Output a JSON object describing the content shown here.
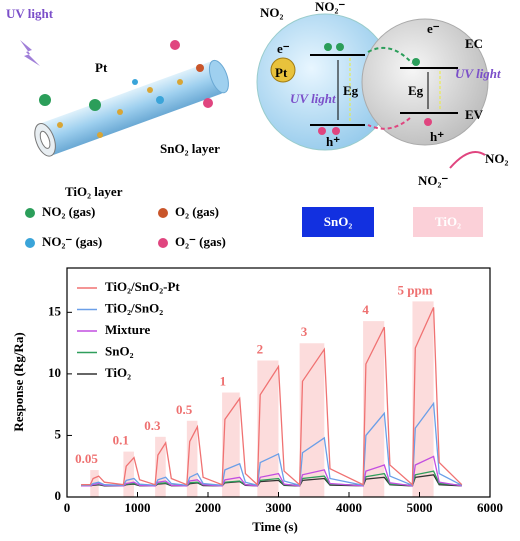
{
  "diagram": {
    "uv_light": "UV light",
    "pt": "Pt",
    "sno2_layer": "SnO₂ layer",
    "tio2_layer": "TiO₂ layer",
    "no2_in": "NO₂",
    "no2_ion_top": "NO₂⁻",
    "electron_left": "e⁻",
    "pt_particle": "Pt",
    "uv_left": "UV light",
    "eg_left": "Eg",
    "hole_left": "h⁺",
    "electron_right": "e⁻",
    "ec": "EC",
    "eg_right": "Eg",
    "uv_right": "UV light",
    "ev": "EV",
    "hole_right": "h⁺",
    "no2_ion_bottom": "NO₂⁻",
    "no2_out": "NO₂",
    "legend": [
      "NO₂ (gas)",
      "O₂ (gas)",
      "NO₂⁻ (gas)",
      "O₂⁻ (gas)"
    ],
    "sno2_box": "SnO₂",
    "tio2_box": "TiO₂"
  },
  "chart_data": {
    "type": "line",
    "xlabel": "Time (s)",
    "ylabel": "Response (Rg/Ra)",
    "x": [
      200,
      330,
      370,
      450,
      530,
      800,
      840,
      950,
      1030,
      1250,
      1290,
      1400,
      1480,
      1700,
      1740,
      1850,
      1930,
      2200,
      2240,
      2450,
      2530,
      2700,
      2740,
      3000,
      3080,
      3300,
      3340,
      3650,
      3730,
      4200,
      4240,
      4500,
      4580,
      4900,
      4940,
      5200,
      5280,
      5600
    ],
    "series": [
      {
        "name": "TiO₂/SnO₂-Pt",
        "color": "#f07272",
        "values": [
          1.0,
          1.0,
          1.5,
          1.7,
          1.2,
          1.0,
          2.5,
          3.2,
          1.4,
          1.0,
          3.4,
          4.4,
          1.5,
          1.0,
          4.5,
          5.7,
          1.6,
          1.0,
          6.3,
          8.0,
          1.9,
          1.0,
          8.3,
          10.6,
          2.1,
          1.0,
          9.4,
          12.0,
          2.3,
          1.0,
          10.8,
          13.8,
          2.6,
          1.0,
          12.1,
          15.4,
          2.8,
          1.0
        ]
      },
      {
        "name": "TiO₂/SnO₂",
        "color": "#6b9fe8",
        "values": [
          0.95,
          0.95,
          1.1,
          1.2,
          1.0,
          0.95,
          1.35,
          1.5,
          1.05,
          0.95,
          1.4,
          1.6,
          1.1,
          0.95,
          1.6,
          1.9,
          1.1,
          0.95,
          2.2,
          2.7,
          1.2,
          0.95,
          2.8,
          3.5,
          1.3,
          0.95,
          3.6,
          4.8,
          1.5,
          0.95,
          5.0,
          6.8,
          1.7,
          0.95,
          5.6,
          7.6,
          1.9,
          0.95
        ]
      },
      {
        "name": "Mixture",
        "color": "#c24ee0",
        "values": [
          0.9,
          0.9,
          1.0,
          1.1,
          0.95,
          0.9,
          1.1,
          1.2,
          0.95,
          0.9,
          1.2,
          1.3,
          0.95,
          0.9,
          1.3,
          1.4,
          1.0,
          0.9,
          1.4,
          1.6,
          1.0,
          0.9,
          1.6,
          1.9,
          1.05,
          0.9,
          1.8,
          2.2,
          1.1,
          0.9,
          2.1,
          2.6,
          1.15,
          0.9,
          2.6,
          3.3,
          1.2,
          0.9
        ]
      },
      {
        "name": "SnO₂",
        "color": "#2f9e5c",
        "values": [
          0.95,
          0.95,
          1.0,
          1.05,
          0.95,
          0.95,
          1.05,
          1.1,
          0.97,
          0.95,
          1.1,
          1.15,
          0.97,
          0.95,
          1.15,
          1.2,
          0.98,
          0.95,
          1.2,
          1.3,
          1.0,
          0.95,
          1.35,
          1.5,
          1.0,
          0.95,
          1.5,
          1.7,
          1.05,
          0.95,
          1.65,
          1.9,
          1.05,
          0.95,
          1.8,
          2.1,
          1.1,
          0.95
        ]
      },
      {
        "name": "TiO₂",
        "color": "#333333",
        "values": [
          0.9,
          0.9,
          0.95,
          1.0,
          0.9,
          0.9,
          1.0,
          1.05,
          0.92,
          0.9,
          1.05,
          1.1,
          0.92,
          0.9,
          1.08,
          1.15,
          0.93,
          0.9,
          1.15,
          1.25,
          0.95,
          0.9,
          1.25,
          1.35,
          0.95,
          0.9,
          1.35,
          1.5,
          0.97,
          0.9,
          1.45,
          1.6,
          1.0,
          0.9,
          1.6,
          1.8,
          1.0,
          0.9
        ]
      }
    ],
    "pulses": [
      {
        "label": "0.05",
        "x": [
          330,
          450
        ]
      },
      {
        "label": "0.1",
        "x": [
          800,
          950
        ]
      },
      {
        "label": "0.3",
        "x": [
          1250,
          1400
        ]
      },
      {
        "label": "0.5",
        "x": [
          1700,
          1850
        ]
      },
      {
        "label": "1",
        "x": [
          2200,
          2450
        ]
      },
      {
        "label": "2",
        "x": [
          2700,
          3000
        ]
      },
      {
        "label": "3",
        "x": [
          3300,
          3650
        ]
      },
      {
        "label": "4",
        "x": [
          4200,
          4500
        ]
      },
      {
        "label": "5 ppm",
        "x": [
          4900,
          5200
        ]
      }
    ],
    "pulse_color": "#fbd3d3",
    "xlim": [
      0,
      6000
    ],
    "xticks": [
      0,
      1000,
      2000,
      3000,
      4000,
      5000,
      6000
    ],
    "ylim": [
      0,
      18.6
    ],
    "yticks": [
      0,
      5,
      10,
      15
    ],
    "legend": "upper left"
  }
}
